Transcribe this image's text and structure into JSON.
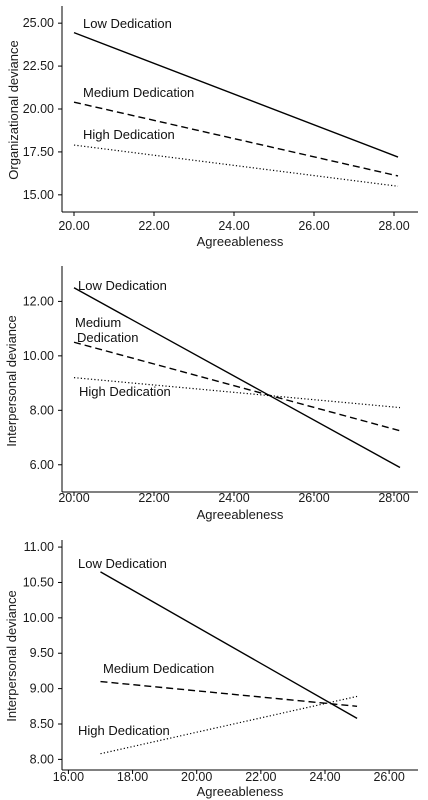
{
  "chart_data": [
    {
      "type": "line",
      "xlabel": "Agreeableness",
      "ylabel": "Organizational deviance",
      "xlim": [
        19.7,
        28.6
      ],
      "ylim": [
        14.0,
        26.0
      ],
      "xticks": [
        "20.00",
        "22.00",
        "24.00",
        "26.00",
        "28.00"
      ],
      "yticks": [
        "15.00",
        "17.50",
        "20.00",
        "22.50",
        "25.00"
      ],
      "series": [
        {
          "name": "Low Dedication",
          "x": [
            20.0,
            28.1
          ],
          "values": [
            24.45,
            17.2
          ],
          "style": "solid"
        },
        {
          "name": "Medium Dedication",
          "x": [
            20.0,
            28.1
          ],
          "values": [
            20.4,
            16.1
          ],
          "style": "dashed"
        },
        {
          "name": "High Dedication",
          "x": [
            20.0,
            28.1
          ],
          "values": [
            17.9,
            15.5
          ],
          "style": "dotted"
        }
      ]
    },
    {
      "type": "line",
      "xlabel": "Agreeableness",
      "ylabel": "Interpersonal deviance",
      "xlim": [
        19.7,
        28.6
      ],
      "ylim": [
        5.0,
        13.3
      ],
      "xticks": [
        "20.00",
        "22.00",
        "24.00",
        "26.00",
        "28.00"
      ],
      "yticks": [
        "6.00",
        "8.00",
        "10.00",
        "12.00"
      ],
      "series": [
        {
          "name": "Low Dedication",
          "x": [
            20.0,
            28.15
          ],
          "values": [
            12.5,
            5.9
          ],
          "style": "solid"
        },
        {
          "name": "Medium Dedication",
          "x": [
            20.0,
            28.15
          ],
          "values": [
            10.5,
            7.25
          ],
          "style": "dashed"
        },
        {
          "name": "High Dedication",
          "x": [
            20.0,
            28.15
          ],
          "values": [
            9.2,
            8.1
          ],
          "style": "dotted"
        }
      ]
    },
    {
      "type": "line",
      "xlabel": "Agreeableness",
      "ylabel": "Interpersonal deviance",
      "xlim": [
        15.8,
        26.9
      ],
      "ylim": [
        7.85,
        11.1
      ],
      "xticks": [
        "16.00",
        "18.00",
        "20.00",
        "22.00",
        "24.00",
        "26.00"
      ],
      "yticks": [
        "8.00",
        "8.50",
        "9.00",
        "9.50",
        "10.00",
        "10.50",
        "11.00"
      ],
      "series": [
        {
          "name": "Low Dedication",
          "x": [
            17.0,
            25.0
          ],
          "values": [
            10.65,
            8.58
          ],
          "style": "solid"
        },
        {
          "name": "Medium Dedication",
          "x": [
            17.0,
            25.0
          ],
          "values": [
            9.1,
            8.75
          ],
          "style": "dashed"
        },
        {
          "name": "High Dedication",
          "x": [
            17.0,
            25.0
          ],
          "values": [
            8.08,
            8.89
          ],
          "style": "dotted"
        }
      ]
    }
  ]
}
